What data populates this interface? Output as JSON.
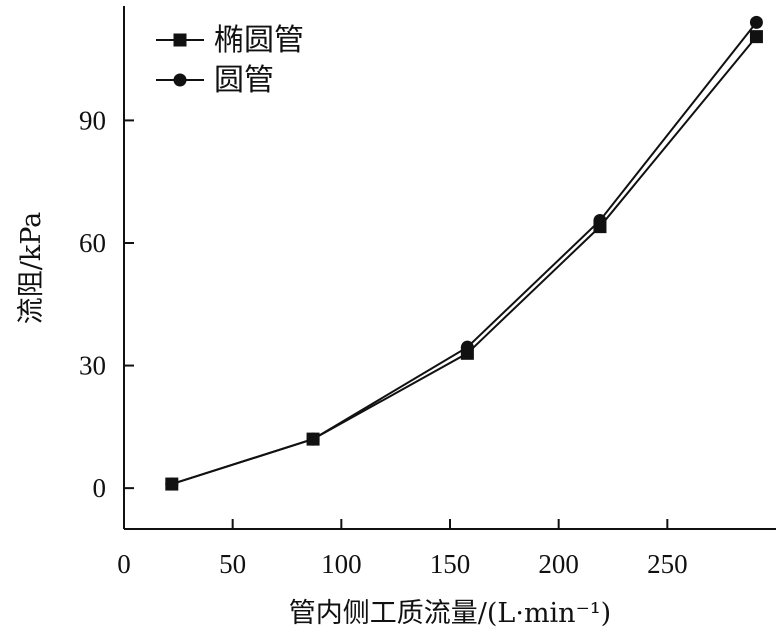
{
  "chart_data": {
    "type": "line",
    "xlabel": "管内侧工质流量/(L·min⁻¹)",
    "ylabel": "流阻/kPa",
    "xlim": [
      0,
      300
    ],
    "ylim": [
      -10,
      118
    ],
    "xticks": [
      0,
      50,
      100,
      150,
      200,
      250
    ],
    "yticks": [
      0,
      30,
      60,
      90
    ],
    "grid": false,
    "legend_position": "top-left",
    "series": [
      {
        "name": "椭圆管",
        "marker": "square",
        "color": "#111111",
        "x": [
          22,
          87,
          158,
          219,
          291
        ],
        "y": [
          1,
          12,
          33,
          64,
          110.5
        ]
      },
      {
        "name": "圆管",
        "marker": "circle",
        "color": "#111111",
        "x": [
          22,
          87,
          158,
          219,
          291
        ],
        "y": [
          1,
          12,
          34.5,
          65.5,
          114
        ]
      }
    ]
  }
}
